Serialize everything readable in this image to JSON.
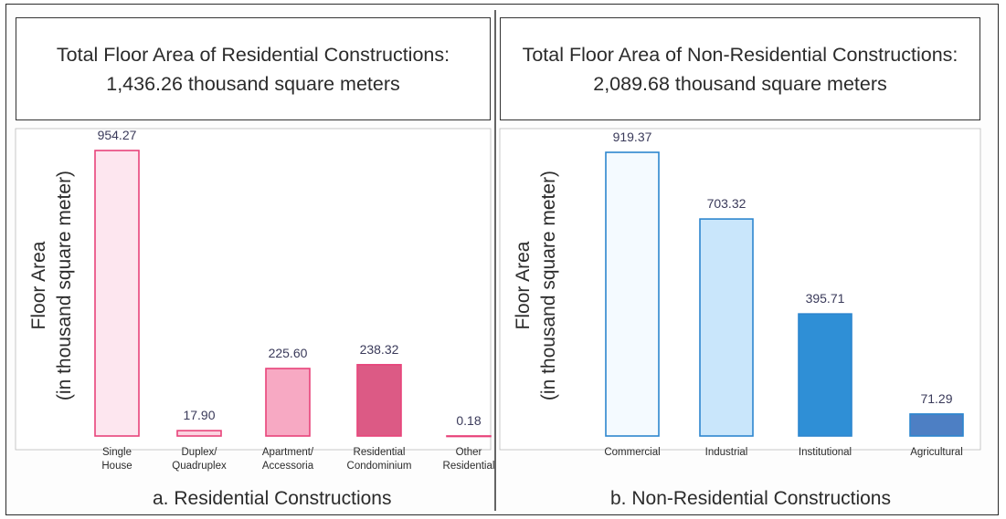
{
  "panels": {
    "left": {
      "title": "Total Floor Area of Residential Constructions: 1,436.26 thousand square meters",
      "ylabel_line1": "Floor Area",
      "ylabel_line2": "(in thousand square meter)",
      "caption": "a. Residential Constructions"
    },
    "right": {
      "title": "Total Floor Area of Non-Residential Constructions: 2,089.68 thousand square meters",
      "ylabel_line1": "Floor Area",
      "ylabel_line2": "(in thousand square meter)",
      "caption": "b. Non-Residential Constructions"
    }
  },
  "chart_data": [
    {
      "type": "bar",
      "title": "Total Floor Area of Residential Constructions: 1,436.26 thousand square meters",
      "xlabel": "a. Residential Constructions",
      "ylabel": "Floor Area (in thousand square meter)",
      "categories": [
        [
          "Single",
          "House"
        ],
        [
          "Duplex/",
          "Quadruplex"
        ],
        [
          "Apartment/",
          "Accessoria"
        ],
        [
          "Residential",
          "Condominium"
        ],
        [
          "Other",
          "Residential"
        ]
      ],
      "values": [
        954.27,
        17.9,
        225.6,
        238.32,
        0.18
      ],
      "value_labels": [
        "954.27",
        "17.90",
        "225.60",
        "238.32",
        "0.18"
      ],
      "colors": [
        "#fde6ef",
        "#fbd3e0",
        "#f7a9c3",
        "#dc5a85",
        "#ffffff"
      ],
      "stroke": "#e8437a",
      "ylim": [
        0,
        954.27
      ],
      "grid": false
    },
    {
      "type": "bar",
      "title": "Total Floor Area of Non-Residential Constructions: 2,089.68 thousand square meters",
      "xlabel": "b. Non-Residential Constructions",
      "ylabel": "Floor Area (in thousand square meter)",
      "categories": [
        [
          "Commercial"
        ],
        [
          "Industrial"
        ],
        [
          "Institutional"
        ],
        [
          "Agricultural"
        ]
      ],
      "values": [
        919.37,
        703.32,
        395.71,
        71.29
      ],
      "value_labels": [
        "919.37",
        "703.32",
        "395.71",
        "71.29"
      ],
      "colors": [
        "#f4faff",
        "#c9e6fb",
        "#2f8fd6",
        "#4d7fc4"
      ],
      "stroke": "#2d86cf",
      "ylim": [
        0,
        919.37
      ],
      "grid": false
    }
  ]
}
